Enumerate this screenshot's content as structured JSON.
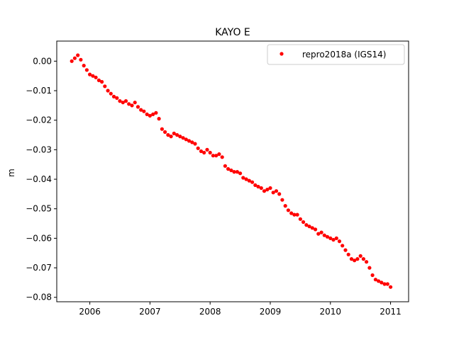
{
  "chart_data": {
    "type": "scatter",
    "title": "KAYO E",
    "xlabel": "",
    "ylabel": "m",
    "xlim": [
      2005.45,
      2011.3
    ],
    "ylim": [
      -0.0815,
      0.0068
    ],
    "x_ticks": [
      2006,
      2007,
      2008,
      2009,
      2010,
      2011
    ],
    "x_tick_labels": [
      "2006",
      "2007",
      "2008",
      "2009",
      "2010",
      "2011"
    ],
    "y_ticks": [
      0.0,
      -0.01,
      -0.02,
      -0.03,
      -0.04,
      -0.05,
      -0.06,
      -0.07,
      -0.08
    ],
    "y_tick_labels": [
      "0.00",
      "−0.01",
      "−0.02",
      "−0.03",
      "−0.04",
      "−0.05",
      "−0.06",
      "−0.07",
      "−0.08"
    ],
    "grid": false,
    "legend_position": "top-right",
    "series": [
      {
        "name": "repro2018a (IGS14)",
        "color": "#ff0000",
        "marker": "circle",
        "x": [
          2005.7,
          2005.75,
          2005.8,
          2005.85,
          2005.9,
          2005.95,
          2006.0,
          2006.05,
          2006.1,
          2006.15,
          2006.2,
          2006.25,
          2006.3,
          2006.35,
          2006.4,
          2006.45,
          2006.5,
          2006.55,
          2006.6,
          2006.65,
          2006.7,
          2006.75,
          2006.8,
          2006.85,
          2006.9,
          2006.95,
          2007.0,
          2007.05,
          2007.1,
          2007.15,
          2007.2,
          2007.25,
          2007.3,
          2007.35,
          2007.4,
          2007.45,
          2007.5,
          2007.55,
          2007.6,
          2007.65,
          2007.7,
          2007.75,
          2007.8,
          2007.85,
          2007.9,
          2007.95,
          2008.0,
          2008.05,
          2008.1,
          2008.15,
          2008.2,
          2008.25,
          2008.3,
          2008.35,
          2008.4,
          2008.45,
          2008.5,
          2008.55,
          2008.6,
          2008.65,
          2008.7,
          2008.75,
          2008.8,
          2008.85,
          2008.9,
          2008.95,
          2009.0,
          2009.05,
          2009.1,
          2009.15,
          2009.2,
          2009.25,
          2009.3,
          2009.35,
          2009.4,
          2009.45,
          2009.5,
          2009.55,
          2009.6,
          2009.65,
          2009.7,
          2009.75,
          2009.8,
          2009.85,
          2009.9,
          2009.95,
          2010.0,
          2010.05,
          2010.1,
          2010.15,
          2010.2,
          2010.25,
          2010.3,
          2010.35,
          2010.4,
          2010.45,
          2010.5,
          2010.55,
          2010.6,
          2010.65,
          2010.7,
          2010.75,
          2010.8,
          2010.85,
          2010.9,
          2010.95,
          2011.0
        ],
        "y": [
          0.0,
          0.001,
          0.002,
          0.0005,
          -0.0015,
          -0.003,
          -0.0045,
          -0.005,
          -0.0055,
          -0.0065,
          -0.007,
          -0.0085,
          -0.01,
          -0.011,
          -0.012,
          -0.0125,
          -0.0135,
          -0.014,
          -0.0135,
          -0.0145,
          -0.015,
          -0.014,
          -0.0155,
          -0.0165,
          -0.017,
          -0.018,
          -0.0185,
          -0.018,
          -0.0175,
          -0.0195,
          -0.023,
          -0.024,
          -0.025,
          -0.0255,
          -0.0245,
          -0.025,
          -0.0255,
          -0.026,
          -0.0265,
          -0.027,
          -0.0275,
          -0.028,
          -0.0295,
          -0.0305,
          -0.031,
          -0.03,
          -0.031,
          -0.032,
          -0.032,
          -0.0315,
          -0.0325,
          -0.0355,
          -0.0365,
          -0.037,
          -0.0375,
          -0.0375,
          -0.038,
          -0.0395,
          -0.04,
          -0.0405,
          -0.041,
          -0.042,
          -0.0425,
          -0.043,
          -0.044,
          -0.0435,
          -0.043,
          -0.0445,
          -0.044,
          -0.045,
          -0.047,
          -0.049,
          -0.0505,
          -0.0515,
          -0.052,
          -0.052,
          -0.0535,
          -0.0545,
          -0.0555,
          -0.056,
          -0.0565,
          -0.057,
          -0.0585,
          -0.058,
          -0.059,
          -0.0595,
          -0.06,
          -0.0605,
          -0.06,
          -0.061,
          -0.0625,
          -0.064,
          -0.0655,
          -0.067,
          -0.0675,
          -0.067,
          -0.066,
          -0.067,
          -0.068,
          -0.07,
          -0.0725,
          -0.074,
          -0.0745,
          -0.075,
          -0.0755,
          -0.0755,
          -0.0765
        ]
      }
    ]
  }
}
